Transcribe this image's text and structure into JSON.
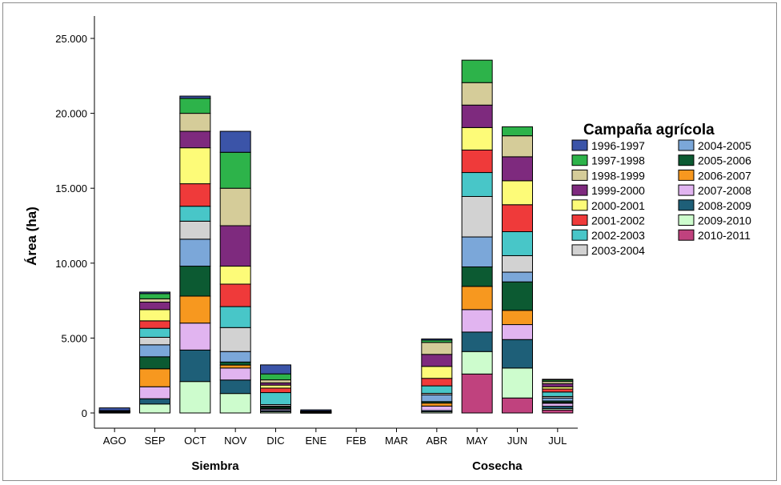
{
  "chart_data": {
    "type": "bar",
    "stacked": true,
    "ylabel": "Área (ha)",
    "ylim": [
      0,
      27000
    ],
    "yticks": [
      "0",
      "5.000",
      "10.000",
      "15.000",
      "20.000",
      "25.000"
    ],
    "ytick_values": [
      0,
      5000,
      10000,
      15000,
      20000,
      25000
    ],
    "categories": [
      "AGO",
      "SEP",
      "OCT",
      "NOV",
      "DIC",
      "ENE",
      "FEB",
      "MAR",
      "ABR",
      "MAY",
      "JUN",
      "JUL"
    ],
    "groups": [
      {
        "label": "Siembra",
        "categories": [
          "AGO",
          "SEP",
          "OCT",
          "NOV",
          "DIC",
          "ENE"
        ]
      },
      {
        "label": "Cosecha",
        "categories": [
          "ABR",
          "MAY",
          "JUN",
          "JUL"
        ]
      }
    ],
    "legend_title": "Campaña agrícola",
    "legend_position": "right",
    "grid": false,
    "series": [
      {
        "name": "2010-2011",
        "color": "#C0427E",
        "values": [
          0,
          0,
          0,
          0,
          0,
          0,
          0,
          0,
          0,
          2600,
          1000,
          200
        ]
      },
      {
        "name": "2009-2010",
        "color": "#CDFCCD",
        "values": [
          20,
          600,
          2100,
          1300,
          80,
          10,
          0,
          0,
          80,
          1500,
          2000,
          100
        ]
      },
      {
        "name": "2008-2009",
        "color": "#1E5F78",
        "values": [
          20,
          350,
          2100,
          900,
          80,
          10,
          0,
          0,
          80,
          1300,
          1900,
          150
        ]
      },
      {
        "name": "2007-2008",
        "color": "#E1B4F0",
        "values": [
          20,
          800,
          1800,
          800,
          100,
          10,
          0,
          0,
          300,
          1500,
          1000,
          200
        ]
      },
      {
        "name": "2006-2007",
        "color": "#F7981F",
        "values": [
          10,
          1200,
          1800,
          200,
          50,
          10,
          0,
          0,
          200,
          1550,
          950,
          50
        ]
      },
      {
        "name": "2005-2006",
        "color": "#0C5A32",
        "values": [
          10,
          800,
          2000,
          200,
          100,
          10,
          0,
          0,
          100,
          1300,
          1900,
          100
        ]
      },
      {
        "name": "2004-2005",
        "color": "#7BA7D9",
        "values": [
          10,
          800,
          1800,
          700,
          50,
          10,
          0,
          0,
          450,
          2000,
          650,
          200
        ]
      },
      {
        "name": "2003-2004",
        "color": "#D2D2D2",
        "values": [
          10,
          500,
          1200,
          1600,
          100,
          10,
          0,
          0,
          100,
          2700,
          1100,
          100
        ]
      },
      {
        "name": "2002-2003",
        "color": "#48C6C8",
        "values": [
          10,
          600,
          1000,
          1400,
          800,
          10,
          0,
          0,
          500,
          1600,
          1600,
          300
        ]
      },
      {
        "name": "2001-2002",
        "color": "#EF3A3A",
        "values": [
          10,
          500,
          1500,
          1500,
          300,
          10,
          0,
          0,
          500,
          1500,
          1800,
          200
        ]
      },
      {
        "name": "2000-2001",
        "color": "#FDFB78",
        "values": [
          10,
          750,
          2400,
          1200,
          200,
          10,
          0,
          0,
          800,
          1500,
          1600,
          150
        ]
      },
      {
        "name": "1999-2000",
        "color": "#7E2A7E",
        "values": [
          10,
          500,
          1100,
          2700,
          150,
          10,
          0,
          0,
          800,
          1500,
          1600,
          200
        ]
      },
      {
        "name": "1998-1999",
        "color": "#D5CC99",
        "values": [
          10,
          220,
          1200,
          2500,
          200,
          10,
          0,
          0,
          800,
          1500,
          1400,
          150
        ]
      },
      {
        "name": "1997-1998",
        "color": "#2DB34A",
        "values": [
          10,
          350,
          1000,
          2400,
          400,
          10,
          0,
          0,
          150,
          1500,
          600,
          100
        ]
      },
      {
        "name": "1996-1997",
        "color": "#3B54A8",
        "values": [
          180,
          100,
          150,
          1400,
          600,
          80,
          0,
          0,
          80,
          0,
          0,
          50
        ]
      }
    ],
    "legend_order": [
      "1996-1997",
      "1997-1998",
      "1998-1999",
      "1999-2000",
      "2000-2001",
      "2001-2002",
      "2002-2003",
      "2003-2004",
      "2004-2005",
      "2005-2006",
      "2006-2007",
      "2007-2008",
      "2008-2009",
      "2009-2010",
      "2010-2011"
    ]
  }
}
